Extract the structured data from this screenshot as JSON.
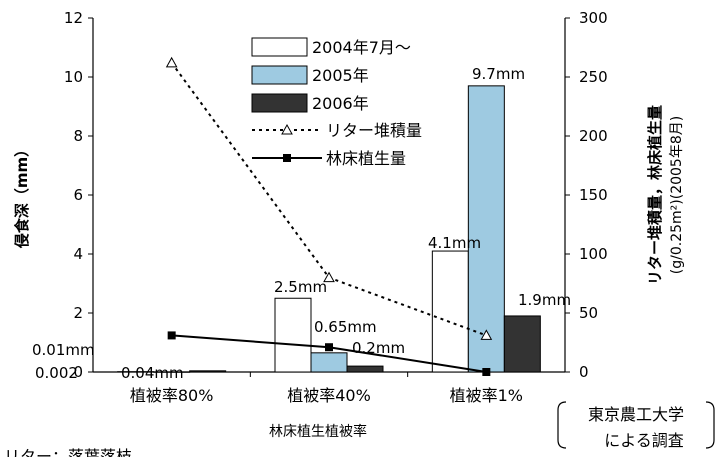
{
  "chart_data": {
    "type": "bar",
    "categories": [
      "植被率80%",
      "植被率40%",
      "植被率1%"
    ],
    "xlabel": "林床植生植被率",
    "ylabel": "侵食深（mm）",
    "ylim": [
      0,
      12
    ],
    "yticks": [
      "0",
      "2",
      "4",
      "6",
      "8",
      "10",
      "12"
    ],
    "y2label": [
      "リター堆積量，林床植生量",
      "(g/0.25m²)(2005年8月)"
    ],
    "y2lim": [
      0,
      300
    ],
    "y2ticks": [
      "0",
      "50",
      "100",
      "150",
      "200",
      "250",
      "300"
    ],
    "series": [
      {
        "name": "2004年7月～",
        "type": "bar",
        "axis": "left",
        "color": "#ffffff",
        "values": [
          0.01,
          2.5,
          4.1
        ],
        "labels": [
          "0.01mm",
          "2.5mm",
          "4.1mm"
        ]
      },
      {
        "name": "2005年",
        "type": "bar",
        "axis": "left",
        "color": "#9ecae1",
        "values": [
          0.002,
          0.65,
          9.7
        ],
        "labels": [
          "0.002",
          "0.65mm",
          "9.7mm"
        ]
      },
      {
        "name": "2006年",
        "type": "bar",
        "axis": "left",
        "color": "#333333",
        "values": [
          0.04,
          0.2,
          1.9
        ],
        "labels": [
          "0.04mm",
          "0.2mm",
          "1.9mm"
        ]
      },
      {
        "name": "リター堆積量",
        "type": "line",
        "axis": "right",
        "style": "dotted",
        "marker": "triangle-open",
        "values": [
          262,
          80,
          31
        ]
      },
      {
        "name": "林床植生量",
        "type": "line",
        "axis": "right",
        "style": "solid",
        "marker": "square-filled",
        "values": [
          31,
          21,
          0
        ]
      }
    ],
    "legend_position": "top-center",
    "grid": false
  },
  "notes": {
    "bottom_left": "リター：落葉落枝",
    "source_line1": "東京農工大学",
    "source_line2": "による調査"
  }
}
